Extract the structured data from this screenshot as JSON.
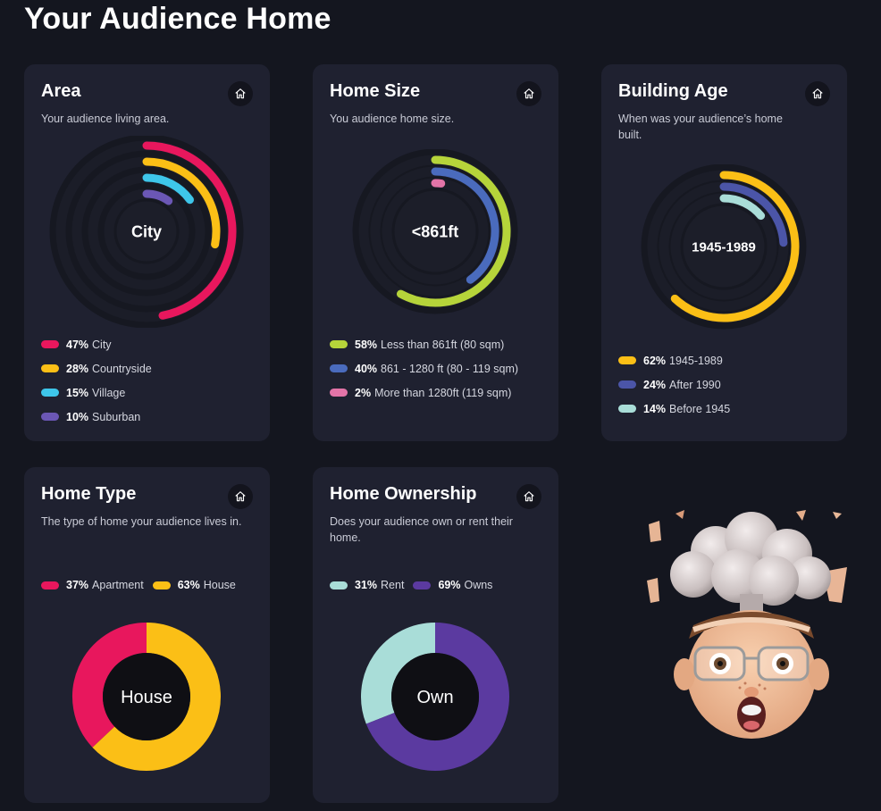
{
  "page": {
    "title": "Your Audience Home"
  },
  "cards": {
    "area": {
      "title": "Area",
      "subtitle": "Your audience living area.",
      "center": "City",
      "legend": [
        {
          "pct": "47%",
          "label": "City"
        },
        {
          "pct": "28%",
          "label": "Countryside"
        },
        {
          "pct": "15%",
          "label": "Village"
        },
        {
          "pct": "10%",
          "label": "Suburban"
        }
      ]
    },
    "size": {
      "title": "Home Size",
      "subtitle": "You audience home size.",
      "center": "<861ft",
      "legend": [
        {
          "pct": "58%",
          "label": "Less than 861ft (80 sqm)"
        },
        {
          "pct": "40%",
          "label": "861 - 1280 ft (80 - 119 sqm)"
        },
        {
          "pct": "2%",
          "label": "More than 1280ft (119 sqm)"
        }
      ]
    },
    "age": {
      "title": "Building Age",
      "subtitle": "When was your audience’s home built.",
      "center": "1945-1989",
      "legend": [
        {
          "pct": "62%",
          "label": "1945-1989"
        },
        {
          "pct": "24%",
          "label": "After 1990"
        },
        {
          "pct": "14%",
          "label": "Before 1945"
        }
      ]
    },
    "type": {
      "title": "Home Type",
      "subtitle": "The type of home your audience lives in.",
      "center": "House",
      "legend": [
        {
          "pct": "37%",
          "label": "Apartment"
        },
        {
          "pct": "63%",
          "label": "House"
        }
      ]
    },
    "ownership": {
      "title": "Home Ownership",
      "subtitle": "Does your audience own or rent their home.",
      "center": "Own",
      "legend": [
        {
          "pct": "31%",
          "label": "Rent"
        },
        {
          "pct": "69%",
          "label": "Owns"
        }
      ]
    }
  },
  "colors": {
    "pink": "#e8175d",
    "yellow": "#fbbf16",
    "cyan": "#3ec6ea",
    "purple": "#6b57b5",
    "lime": "#b6d43a",
    "blue": "#4a6bbd",
    "rose": "#e374a8",
    "navy": "#4b55a8",
    "mint": "#a9ddd8",
    "violet": "#5b3aa0",
    "track": "#161821"
  },
  "chart_data": [
    {
      "type": "pie",
      "variant": "radial-bar",
      "title": "Area",
      "categories": [
        "City",
        "Countryside",
        "Village",
        "Suburban"
      ],
      "values": [
        47,
        28,
        15,
        10
      ],
      "colors": [
        "#e8175d",
        "#fbbf16",
        "#3ec6ea",
        "#6b57b5"
      ]
    },
    {
      "type": "pie",
      "variant": "radial-bar",
      "title": "Home Size",
      "categories": [
        "Less than 861ft (80 sqm)",
        "861 - 1280 ft (80 - 119 sqm)",
        "More than 1280ft (119 sqm)"
      ],
      "values": [
        58,
        40,
        2
      ],
      "colors": [
        "#b6d43a",
        "#4a6bbd",
        "#e374a8"
      ]
    },
    {
      "type": "pie",
      "variant": "radial-bar",
      "title": "Building Age",
      "categories": [
        "1945-1989",
        "After 1990",
        "Before 1945"
      ],
      "values": [
        62,
        24,
        14
      ],
      "colors": [
        "#fbbf16",
        "#4b55a8",
        "#a9ddd8"
      ]
    },
    {
      "type": "pie",
      "variant": "donut",
      "title": "Home Type",
      "categories": [
        "Apartment",
        "House"
      ],
      "values": [
        37,
        63
      ],
      "colors": [
        "#e8175d",
        "#fbbf16"
      ]
    },
    {
      "type": "pie",
      "variant": "donut",
      "title": "Home Ownership",
      "categories": [
        "Rent",
        "Owns"
      ],
      "values": [
        31,
        69
      ],
      "colors": [
        "#a9ddd8",
        "#5b3aa0"
      ]
    }
  ]
}
